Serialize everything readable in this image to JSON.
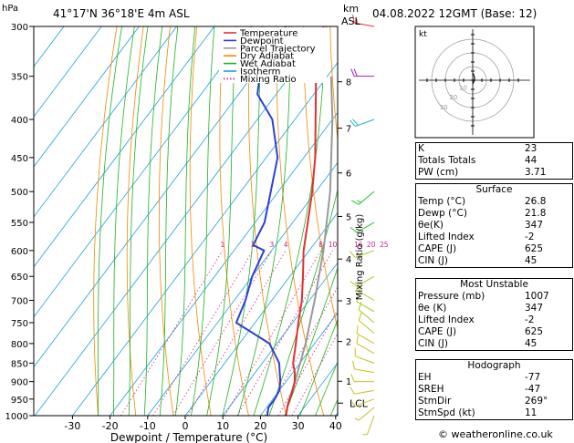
{
  "header": {
    "p_unit": "hPa",
    "location": "41°17'N  36°18'E  4m  ASL",
    "km_label": "km",
    "asl_label": "ASL",
    "datetime": "04.08.2022  12GMT  (Base: 12)"
  },
  "chart_data": {
    "type": "skew-t log-p",
    "xlabel": "Dewpoint / Temperature (°C)",
    "ylabel": "Mixing Ratio (g/kg)",
    "pressure_ticks": [
      300,
      350,
      400,
      450,
      500,
      550,
      600,
      650,
      700,
      750,
      800,
      850,
      900,
      950,
      1000
    ],
    "temp_ticks": [
      -30,
      -20,
      -10,
      0,
      10,
      20,
      30,
      40
    ],
    "km_ticks": [
      {
        "label": "8",
        "p": 356
      },
      {
        "label": "7",
        "p": 411
      },
      {
        "label": "6",
        "p": 472
      },
      {
        "label": "5",
        "p": 540
      },
      {
        "label": "4",
        "p": 616
      },
      {
        "label": "3",
        "p": 701
      },
      {
        "label": "2",
        "p": 795
      },
      {
        "label": "1",
        "p": 899
      }
    ],
    "mixing_ratio_labels": [
      "1",
      "2",
      "3",
      "4",
      "8",
      "10",
      "16",
      "20",
      "25"
    ],
    "lcl_label": "LCL",
    "lcl_pressure": 962,
    "legend": [
      {
        "name": "Temperature",
        "color": "#e03030",
        "style": "solid"
      },
      {
        "name": "Dewpoint",
        "color": "#2d3fd6",
        "style": "solid"
      },
      {
        "name": "Parcel Trajectory",
        "color": "#999999",
        "style": "solid"
      },
      {
        "name": "Dry Adiabat",
        "color": "#ee8a00",
        "style": "solid"
      },
      {
        "name": "Wet Adiabat",
        "color": "#1eb21e",
        "style": "solid"
      },
      {
        "name": "Isotherm",
        "color": "#1a9fe0",
        "style": "solid"
      },
      {
        "name": "Mixing Ratio",
        "color": "#d0208a",
        "style": "dotted"
      }
    ],
    "temperature": [
      [
        1000,
        26.8
      ],
      [
        975,
        25.5
      ],
      [
        950,
        24.5
      ],
      [
        925,
        23.5
      ],
      [
        900,
        22.3
      ],
      [
        875,
        20.5
      ],
      [
        850,
        18.2
      ],
      [
        800,
        15.0
      ],
      [
        750,
        11.5
      ],
      [
        700,
        8.0
      ],
      [
        650,
        3.5
      ],
      [
        600,
        -1.5
      ],
      [
        550,
        -6.0
      ],
      [
        500,
        -11.0
      ],
      [
        450,
        -17.0
      ],
      [
        400,
        -24.5
      ],
      [
        350,
        -33.0
      ],
      [
        300,
        -41.0
      ]
    ],
    "dewpoint": [
      [
        1000,
        21.8
      ],
      [
        975,
        20.5
      ],
      [
        950,
        20.5
      ],
      [
        925,
        20.0
      ],
      [
        900,
        18.5
      ],
      [
        875,
        16.5
      ],
      [
        850,
        14.5
      ],
      [
        800,
        8.0
      ],
      [
        750,
        -5.0
      ],
      [
        700,
        -7.0
      ],
      [
        650,
        -10.0
      ],
      [
        600,
        -12.0
      ],
      [
        590,
        -16.0
      ],
      [
        550,
        -17.5
      ],
      [
        500,
        -22.0
      ],
      [
        450,
        -27.0
      ],
      [
        400,
        -36.0
      ],
      [
        370,
        -45.0
      ],
      [
        350,
        -48.0
      ],
      [
        300,
        -51.0
      ]
    ],
    "parcel": [
      [
        1000,
        26.8
      ],
      [
        962,
        24.8
      ],
      [
        900,
        22.4
      ],
      [
        800,
        17.6
      ],
      [
        700,
        11.4
      ],
      [
        600,
        3.8
      ],
      [
        500,
        -6.2
      ],
      [
        400,
        -20.0
      ],
      [
        350,
        -29.0
      ]
    ],
    "hodograph": {
      "label": "kt",
      "ring_labels": [
        "10",
        "20",
        "30"
      ],
      "trace": [
        [
          0,
          -4
        ],
        [
          1,
          -2
        ],
        [
          2,
          0
        ],
        [
          2,
          3
        ],
        [
          1,
          6
        ],
        [
          0,
          8
        ]
      ]
    },
    "winds": [
      {
        "p": 1000,
        "dir": 200,
        "spd": 5
      },
      {
        "p": 975,
        "dir": 230,
        "spd": 5
      },
      {
        "p": 950,
        "dir": 250,
        "spd": 5
      },
      {
        "p": 925,
        "dir": 260,
        "spd": 10
      },
      {
        "p": 900,
        "dir": 270,
        "spd": 10
      },
      {
        "p": 875,
        "dir": 280,
        "spd": 10
      },
      {
        "p": 850,
        "dir": 290,
        "spd": 10
      },
      {
        "p": 825,
        "dir": 300,
        "spd": 10
      },
      {
        "p": 800,
        "dir": 300,
        "spd": 10
      },
      {
        "p": 775,
        "dir": 310,
        "spd": 10
      },
      {
        "p": 750,
        "dir": 310,
        "spd": 10
      },
      {
        "p": 725,
        "dir": 300,
        "spd": 10
      },
      {
        "p": 700,
        "dir": 300,
        "spd": 15
      },
      {
        "p": 650,
        "dir": 240,
        "spd": 10
      },
      {
        "p": 600,
        "dir": 250,
        "spd": 10
      },
      {
        "p": 550,
        "dir": 240,
        "spd": 10
      },
      {
        "p": 500,
        "dir": 230,
        "spd": 15
      },
      {
        "p": 400,
        "dir": 250,
        "spd": 20
      },
      {
        "p": 350,
        "dir": 270,
        "spd": 20
      },
      {
        "p": 300,
        "dir": 280,
        "spd": 15
      }
    ]
  },
  "indices": {
    "top": [
      {
        "label": "K",
        "value": "23"
      },
      {
        "label": "Totals Totals",
        "value": "44"
      },
      {
        "label": "PW (cm)",
        "value": "3.71"
      }
    ],
    "surface": {
      "title": "Surface",
      "rows": [
        {
          "label": "Temp (°C)",
          "value": "26.8"
        },
        {
          "label": "Dewp (°C)",
          "value": "21.8"
        },
        {
          "label": "θe(K)",
          "value": "347"
        },
        {
          "label": "Lifted Index",
          "value": "-2"
        },
        {
          "label": "CAPE (J)",
          "value": "625"
        },
        {
          "label": "CIN (J)",
          "value": "45"
        }
      ]
    },
    "most_unstable": {
      "title": "Most Unstable",
      "rows": [
        {
          "label": "Pressure (mb)",
          "value": "1007"
        },
        {
          "label": "θe (K)",
          "value": "347"
        },
        {
          "label": "Lifted Index",
          "value": "-2"
        },
        {
          "label": "CAPE (J)",
          "value": "625"
        },
        {
          "label": "CIN (J)",
          "value": "45"
        }
      ]
    },
    "hodograph": {
      "title": "Hodograph",
      "rows": [
        {
          "label": "EH",
          "value": "-77"
        },
        {
          "label": "SREH",
          "value": "-47"
        },
        {
          "label": "StmDir",
          "value": "269°"
        },
        {
          "label": "StmSpd (kt)",
          "value": "11"
        }
      ]
    }
  },
  "footer": {
    "copyright": "© weatheronline.co.uk"
  }
}
